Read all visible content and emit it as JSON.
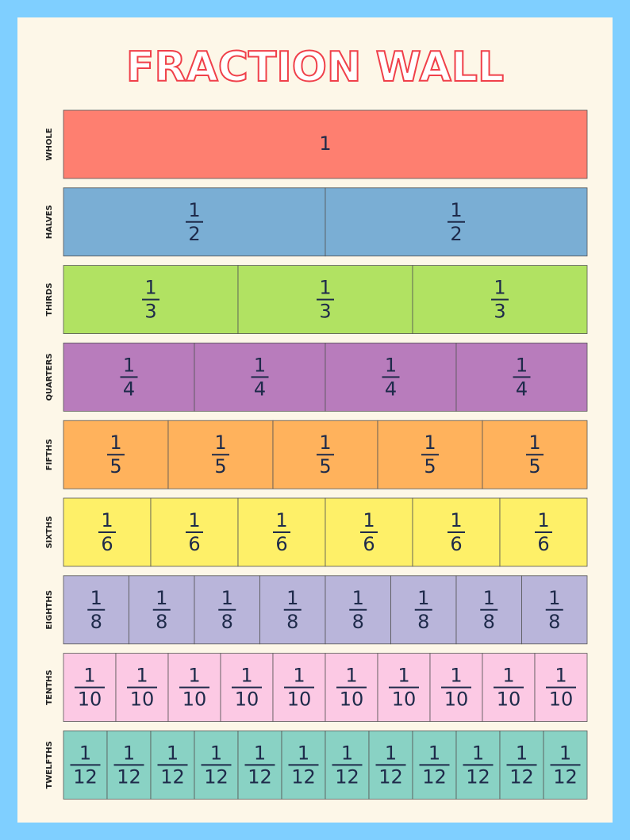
{
  "title": "FRACTION WALL",
  "rows": [
    {
      "label": "WHOLE",
      "color": "#fe7f70",
      "cells": [
        [
          1
        ]
      ]
    },
    {
      "label": "HALVES",
      "color": "#7aaed4",
      "cells": [
        [
          1,
          2
        ],
        [
          1,
          2
        ]
      ]
    },
    {
      "label": "THIRDS",
      "color": "#b1e262",
      "cells": [
        [
          1,
          3
        ],
        [
          1,
          3
        ],
        [
          1,
          3
        ]
      ]
    },
    {
      "label": "QUARTERS",
      "color": "#b87cbc",
      "cells": [
        [
          1,
          4
        ],
        [
          1,
          4
        ],
        [
          1,
          4
        ],
        [
          1,
          4
        ]
      ]
    },
    {
      "label": "FIFTHS",
      "color": "#ffb25c",
      "cells": [
        [
          1,
          5
        ],
        [
          1,
          5
        ],
        [
          1,
          5
        ],
        [
          1,
          5
        ],
        [
          1,
          5
        ]
      ]
    },
    {
      "label": "SIXTHS",
      "color": "#fef068",
      "cells": [
        [
          1,
          6
        ],
        [
          1,
          6
        ],
        [
          1,
          6
        ],
        [
          1,
          6
        ],
        [
          1,
          6
        ],
        [
          1,
          6
        ]
      ]
    },
    {
      "label": "EIGHTHS",
      "color": "#b9b5da",
      "cells": [
        [
          1,
          8
        ],
        [
          1,
          8
        ],
        [
          1,
          8
        ],
        [
          1,
          8
        ],
        [
          1,
          8
        ],
        [
          1,
          8
        ],
        [
          1,
          8
        ],
        [
          1,
          8
        ]
      ]
    },
    {
      "label": "TENTHS",
      "color": "#fcc9e4",
      "cells": [
        [
          1,
          10
        ],
        [
          1,
          10
        ],
        [
          1,
          10
        ],
        [
          1,
          10
        ],
        [
          1,
          10
        ],
        [
          1,
          10
        ],
        [
          1,
          10
        ],
        [
          1,
          10
        ],
        [
          1,
          10
        ],
        [
          1,
          10
        ]
      ]
    },
    {
      "label": "TWELFTHS",
      "color": "#89d2c4",
      "cells": [
        [
          1,
          12
        ],
        [
          1,
          12
        ],
        [
          1,
          12
        ],
        [
          1,
          12
        ],
        [
          1,
          12
        ],
        [
          1,
          12
        ],
        [
          1,
          12
        ],
        [
          1,
          12
        ],
        [
          1,
          12
        ],
        [
          1,
          12
        ],
        [
          1,
          12
        ],
        [
          1,
          12
        ]
      ]
    }
  ]
}
